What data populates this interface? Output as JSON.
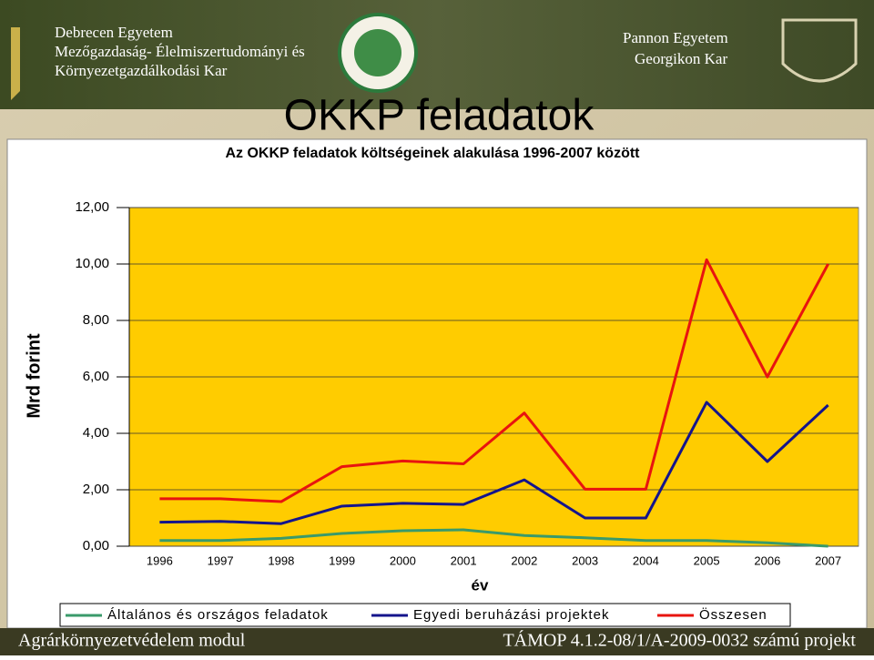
{
  "header": {
    "left_lines": [
      "Debrecen Egyetem",
      "Mezőgazdaság- Élelmiszertudományi és",
      "Környezetgazdálkodási Kar"
    ],
    "right_lines": [
      "Pannon Egyetem",
      "Georgikon Kar"
    ]
  },
  "slide_title": "OKKP feladatok",
  "footer": {
    "left": "Agrárkörnyezetvédelem modul",
    "right": "TÁMOP 4.1.2-08/1/A-2009-0032 számú projekt"
  },
  "chart_data": {
    "type": "line",
    "title": "Az OKKP feladatok költségeinek alakulása 1996-2007 között",
    "y_label": "Mrd forint",
    "x_label": "év",
    "categories": [
      "1996",
      "1997",
      "1998",
      "1999",
      "2000",
      "2001",
      "2002",
      "2003",
      "2004",
      "2005",
      "2006",
      "2007"
    ],
    "series": [
      {
        "name": "Általános és országos feladatok",
        "color": "#3a9a6a",
        "values": [
          0.2,
          0.2,
          0.28,
          0.45,
          0.55,
          0.58,
          0.38,
          0.3,
          0.2,
          0.2,
          0.12,
          0.0
        ]
      },
      {
        "name": "Egyedi beruházási projektek",
        "color": "#14148c",
        "values": [
          0.85,
          0.88,
          0.8,
          1.42,
          1.52,
          1.48,
          2.35,
          1.0,
          1.0,
          5.1,
          3.0,
          5.0
        ]
      },
      {
        "name": "Összesen",
        "color": "#e8140f",
        "values": [
          1.68,
          1.68,
          1.58,
          2.82,
          3.02,
          2.92,
          4.72,
          2.02,
          2.02,
          10.15,
          6.0,
          10.0
        ]
      }
    ],
    "ylim": [
      0,
      12
    ],
    "yticks": [
      {
        "value": 0,
        "label": "0,00"
      },
      {
        "value": 2,
        "label": "2,00"
      },
      {
        "value": 4,
        "label": "4,00"
      },
      {
        "value": 6,
        "label": "6,00"
      },
      {
        "value": 8,
        "label": "8,00"
      },
      {
        "value": 10,
        "label": "10,00"
      },
      {
        "value": 12,
        "label": "12,00"
      }
    ],
    "grid": true,
    "plot_color": "#ffcc00",
    "legend": "bottom"
  }
}
